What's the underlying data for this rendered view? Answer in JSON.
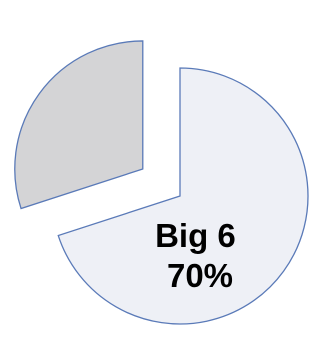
{
  "chart_data": {
    "type": "pie",
    "exploded": true,
    "slices": [
      {
        "label_lines": [
          "Big 6",
          "70%"
        ],
        "value": 70,
        "color": "#eef0f6",
        "stroke": "#5a7ab8"
      },
      {
        "label_lines": [],
        "value": 30,
        "color": "#d4d4d6",
        "stroke": "#5a7ab8"
      }
    ],
    "grid": false,
    "legend": "none"
  }
}
